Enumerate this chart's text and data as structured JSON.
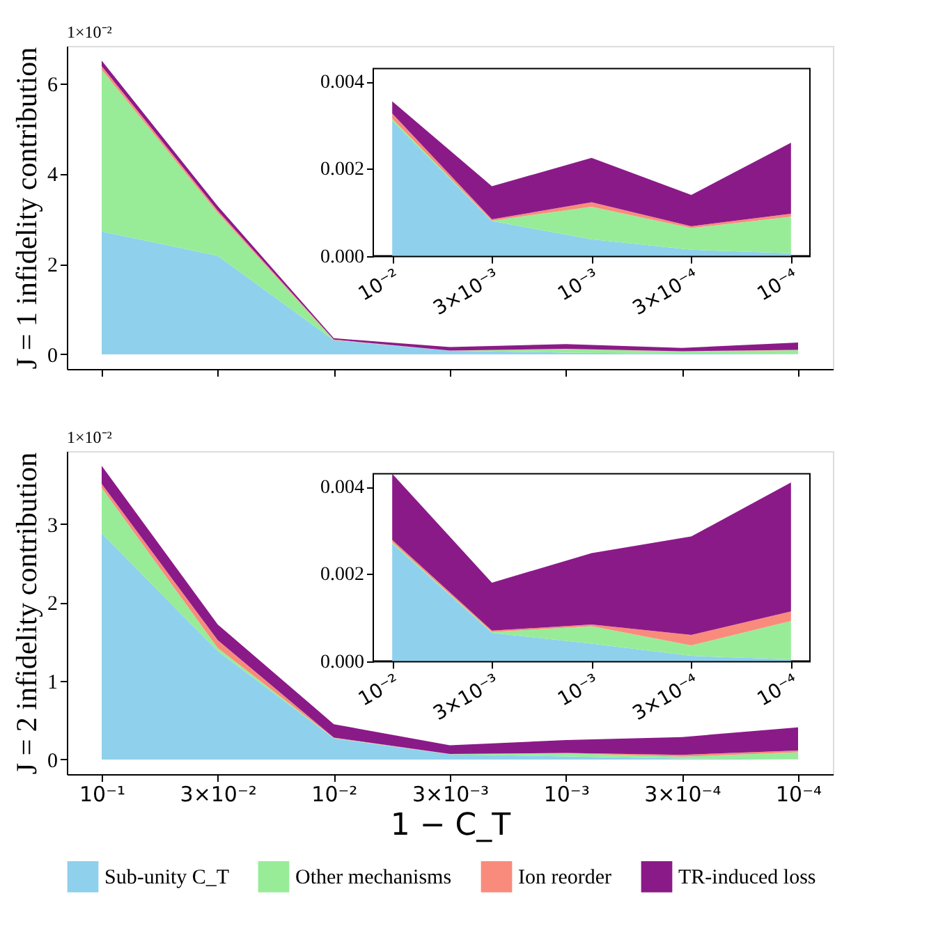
{
  "chart_data": [
    {
      "type": "area",
      "stacked": true,
      "ylabel": "J = 1 infidelity contribution",
      "annotations": [
        "1×10⁻²"
      ],
      "tick_labels": "y",
      "grid": false,
      "legend": "bottom",
      "categories": [
        "10⁻¹",
        "3×10⁻²",
        "10⁻²",
        "3×10⁻³",
        "10⁻³",
        "3×10⁻⁴",
        "10⁻⁴"
      ],
      "ylim": [
        -0.325,
        6.825
      ],
      "yticks": [
        0,
        2,
        4,
        6
      ],
      "series": [
        {
          "name": "Sub-unity C_T",
          "color": "#8fd0ec",
          "values": [
            2.72,
            2.18,
            0.31,
            0.08,
            0.038,
            0.014,
            0.006
          ]
        },
        {
          "name": "Other mechanisms",
          "color": "#98ec98",
          "values": [
            3.58,
            0.95,
            0.005,
            0.001,
            0.075,
            0.05,
            0.084
          ]
        },
        {
          "name": "Ion reorder",
          "color": "#f98b7c",
          "values": [
            0.08,
            0.05,
            0.012,
            0.003,
            0.01,
            0.004,
            0.007
          ]
        },
        {
          "name": "TR-induced loss",
          "color": "#8b1a89",
          "values": [
            0.12,
            0.1,
            0.028,
            0.076,
            0.102,
            0.072,
            0.163
          ]
        }
      ]
    },
    {
      "type": "area",
      "stacked": true,
      "grid": false,
      "categories": [
        "10⁻²",
        "3×10⁻³",
        "10⁻³",
        "3×10⁻⁴",
        "10⁻⁴"
      ],
      "ylim": [
        0,
        0.0043
      ],
      "yticks": [
        {
          "value": 0,
          "label": "0.000"
        },
        {
          "value": 0.002,
          "label": "0.002"
        },
        {
          "value": 0.004,
          "label": "0.004"
        }
      ],
      "series": [
        {
          "name": "Sub-unity C_T",
          "color": "#8fd0ec",
          "values": [
            0.0031,
            0.0008,
            0.00038,
            0.00014,
            6e-05
          ]
        },
        {
          "name": "Other mechanisms",
          "color": "#98ec98",
          "values": [
            5e-05,
            1e-05,
            0.00075,
            0.0005,
            0.00084
          ]
        },
        {
          "name": "Ion reorder",
          "color": "#f98b7c",
          "values": [
            0.00012,
            3e-05,
            0.0001,
            4e-05,
            7e-05
          ]
        },
        {
          "name": "TR-induced loss",
          "color": "#8b1a89",
          "values": [
            0.00028,
            0.00076,
            0.00102,
            0.00072,
            0.00163
          ]
        }
      ]
    },
    {
      "type": "area",
      "stacked": true,
      "ylabel": "J = 2 infidelity contribution",
      "xlabel": "1 − C_T",
      "annotations": [
        "1×10⁻²"
      ],
      "grid": false,
      "categories": [
        "10⁻¹",
        "3×10⁻²",
        "10⁻²",
        "3×10⁻³",
        "10⁻³",
        "3×10⁻⁴",
        "10⁻⁴"
      ],
      "ylim": [
        -0.187,
        3.927
      ],
      "yticks": [
        0,
        1,
        2,
        3
      ],
      "series": [
        {
          "name": "Sub-unity C_T",
          "color": "#8fd0ec",
          "values": [
            2.88,
            1.38,
            0.27,
            0.065,
            0.04,
            0.012,
            0.004
          ]
        },
        {
          "name": "Other mechanisms",
          "color": "#98ec98",
          "values": [
            0.58,
            0.04,
            0.003,
            0.002,
            0.04,
            0.024,
            0.088
          ]
        },
        {
          "name": "Ion reorder",
          "color": "#f98b7c",
          "values": [
            0.05,
            0.1,
            0.005,
            0.003,
            0.004,
            0.024,
            0.022
          ]
        },
        {
          "name": "TR-induced loss",
          "color": "#8b1a89",
          "values": [
            0.23,
            0.2,
            0.172,
            0.11,
            0.164,
            0.226,
            0.296
          ]
        }
      ]
    },
    {
      "type": "area",
      "stacked": true,
      "grid": false,
      "categories": [
        "10⁻²",
        "3×10⁻³",
        "10⁻³",
        "3×10⁻⁴",
        "10⁻⁴"
      ],
      "ylim": [
        0,
        0.0043
      ],
      "yticks": [
        {
          "value": 0,
          "label": "0.000"
        },
        {
          "value": 0.002,
          "label": "0.002"
        },
        {
          "value": 0.004,
          "label": "0.004"
        }
      ],
      "series": [
        {
          "name": "Sub-unity C_T",
          "color": "#8fd0ec",
          "values": [
            0.0027,
            0.00065,
            0.0004,
            0.00012,
            4e-05
          ]
        },
        {
          "name": "Other mechanisms",
          "color": "#98ec98",
          "values": [
            3e-05,
            2e-05,
            0.0004,
            0.00024,
            0.00088
          ]
        },
        {
          "name": "Ion reorder",
          "color": "#f98b7c",
          "values": [
            5e-05,
            3e-05,
            4e-05,
            0.00024,
            0.00022
          ]
        },
        {
          "name": "TR-induced loss",
          "color": "#8b1a89",
          "values": [
            0.00152,
            0.0011,
            0.00164,
            0.00226,
            0.00296
          ]
        }
      ]
    }
  ]
}
